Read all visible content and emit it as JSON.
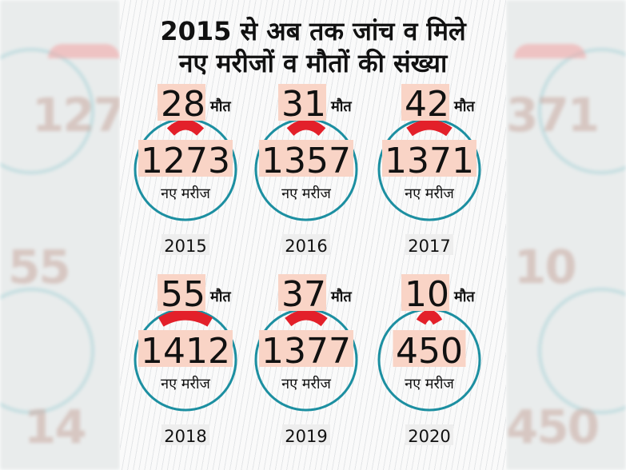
{
  "title_line1": "2015 से अब तक जांच व मिले",
  "title_line2": "नए मरीजों व मौतों की संख्या",
  "colors": {
    "ring": "#1c8fa1",
    "arc": "#e3202a",
    "highlight": "#f9d4c6",
    "text": "#111111"
  },
  "chart_data": {
    "type": "other",
    "title": "2015 से अब तक जांच व मिले नए मरीजों व मौतों की संख्या",
    "death_label": "मौत",
    "patient_label": "नए मरीज",
    "items": [
      {
        "year": "2015",
        "deaths": "28",
        "patients": "1273"
      },
      {
        "year": "2016",
        "deaths": "31",
        "patients": "1357"
      },
      {
        "year": "2017",
        "deaths": "42",
        "patients": "1371"
      },
      {
        "year": "2018",
        "deaths": "55",
        "patients": "1412"
      },
      {
        "year": "2019",
        "deaths": "37",
        "patients": "1377"
      },
      {
        "year": "2020",
        "deaths": "10",
        "patients": "450"
      }
    ]
  }
}
